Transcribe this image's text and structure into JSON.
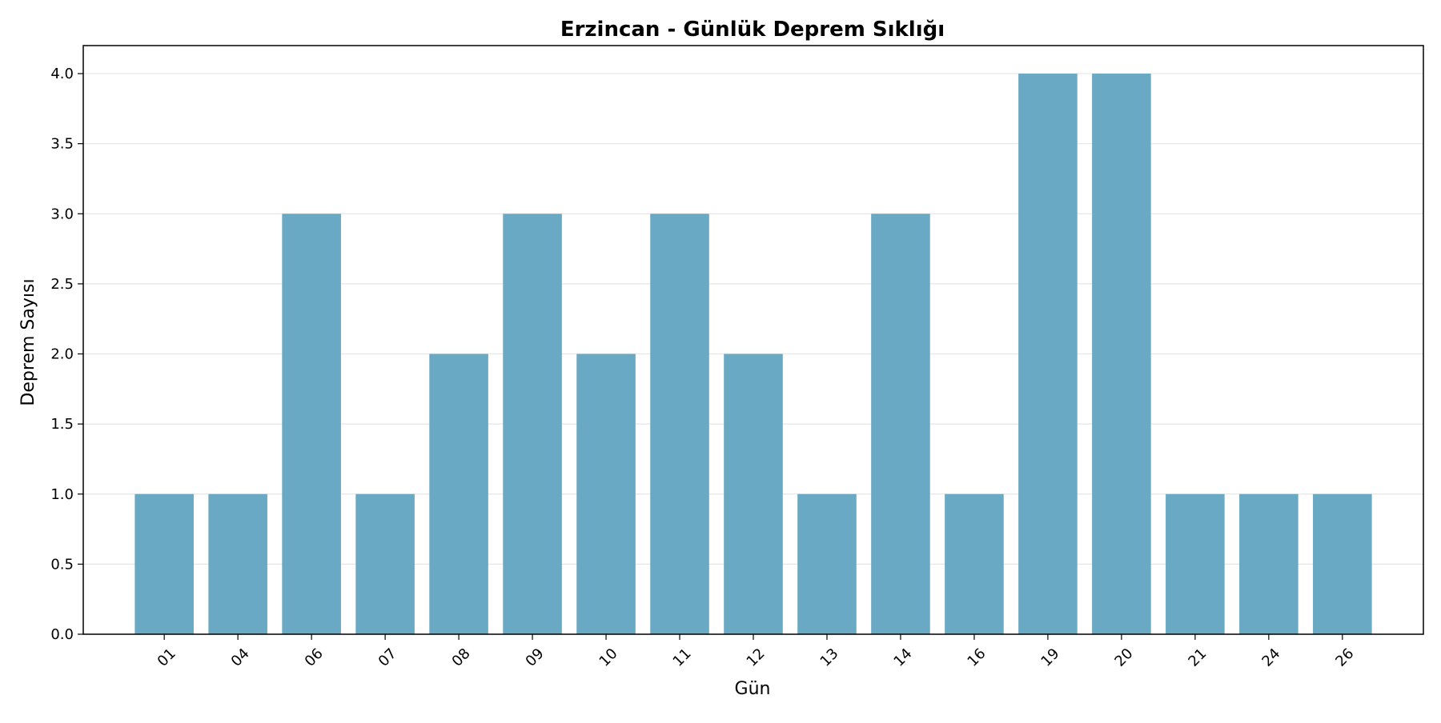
{
  "chart_data": {
    "type": "bar",
    "title": "Erzincan - Günlük Deprem Sıklığı",
    "xlabel": "Gün",
    "ylabel": "Deprem Sayısı",
    "categories": [
      "01",
      "04",
      "06",
      "07",
      "08",
      "09",
      "10",
      "11",
      "12",
      "13",
      "14",
      "16",
      "19",
      "20",
      "21",
      "24",
      "26"
    ],
    "values": [
      1,
      1,
      3,
      1,
      2,
      3,
      2,
      3,
      2,
      1,
      3,
      1,
      4,
      4,
      1,
      1,
      1
    ],
    "ylim": [
      0,
      4.2
    ],
    "yticks": [
      "0.0",
      "0.5",
      "1.0",
      "1.5",
      "2.0",
      "2.5",
      "3.0",
      "3.5",
      "4.0"
    ],
    "x_tick_rotation_deg": 45,
    "grid": "horizontal",
    "bar_color": "#6aa9c4",
    "grid_color": "#e6e6e6",
    "legend": "none"
  }
}
